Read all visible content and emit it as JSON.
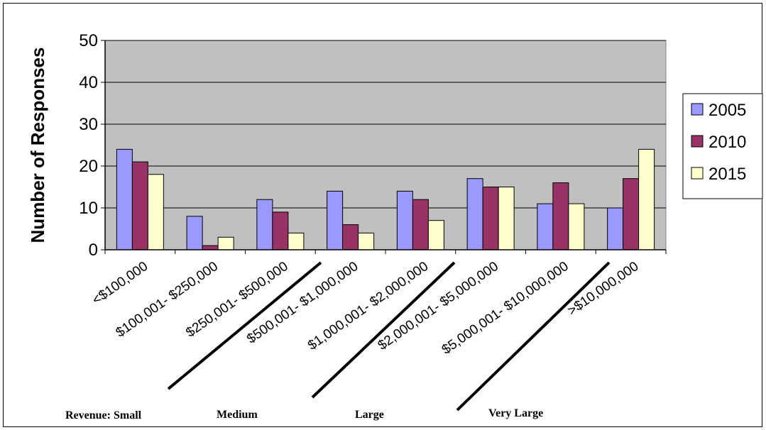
{
  "chart_data": {
    "type": "bar",
    "title": "",
    "xlabel": "",
    "ylabel": "Number of Responses",
    "ylim": [
      0,
      50
    ],
    "yticks": [
      0,
      10,
      20,
      30,
      40,
      50
    ],
    "grid": true,
    "legend_position": "right",
    "categories": [
      "<$100,000",
      "$100,001- $250,000",
      "$250,001- $500,000",
      "$500,001- $1,000,000",
      "$1,000,001- $2,000,000",
      "$2,000,001- $5,000,000",
      "$5,000,001- $10,000,000",
      ">$10,000,000"
    ],
    "series": [
      {
        "name": "2005",
        "color": "#9999ff",
        "values": [
          24,
          8,
          12,
          14,
          14,
          17,
          11,
          10
        ]
      },
      {
        "name": "2010",
        "color": "#993366",
        "values": [
          21,
          1,
          9,
          6,
          12,
          15,
          16,
          17
        ]
      },
      {
        "name": "2015",
        "color": "#ffffcc",
        "values": [
          18,
          3,
          4,
          4,
          7,
          15,
          11,
          24
        ]
      }
    ],
    "plot_background": "#c0c0c0",
    "revenue_groups": [
      "Revenue:  Small",
      "Medium",
      "Large",
      "Very Large"
    ]
  }
}
